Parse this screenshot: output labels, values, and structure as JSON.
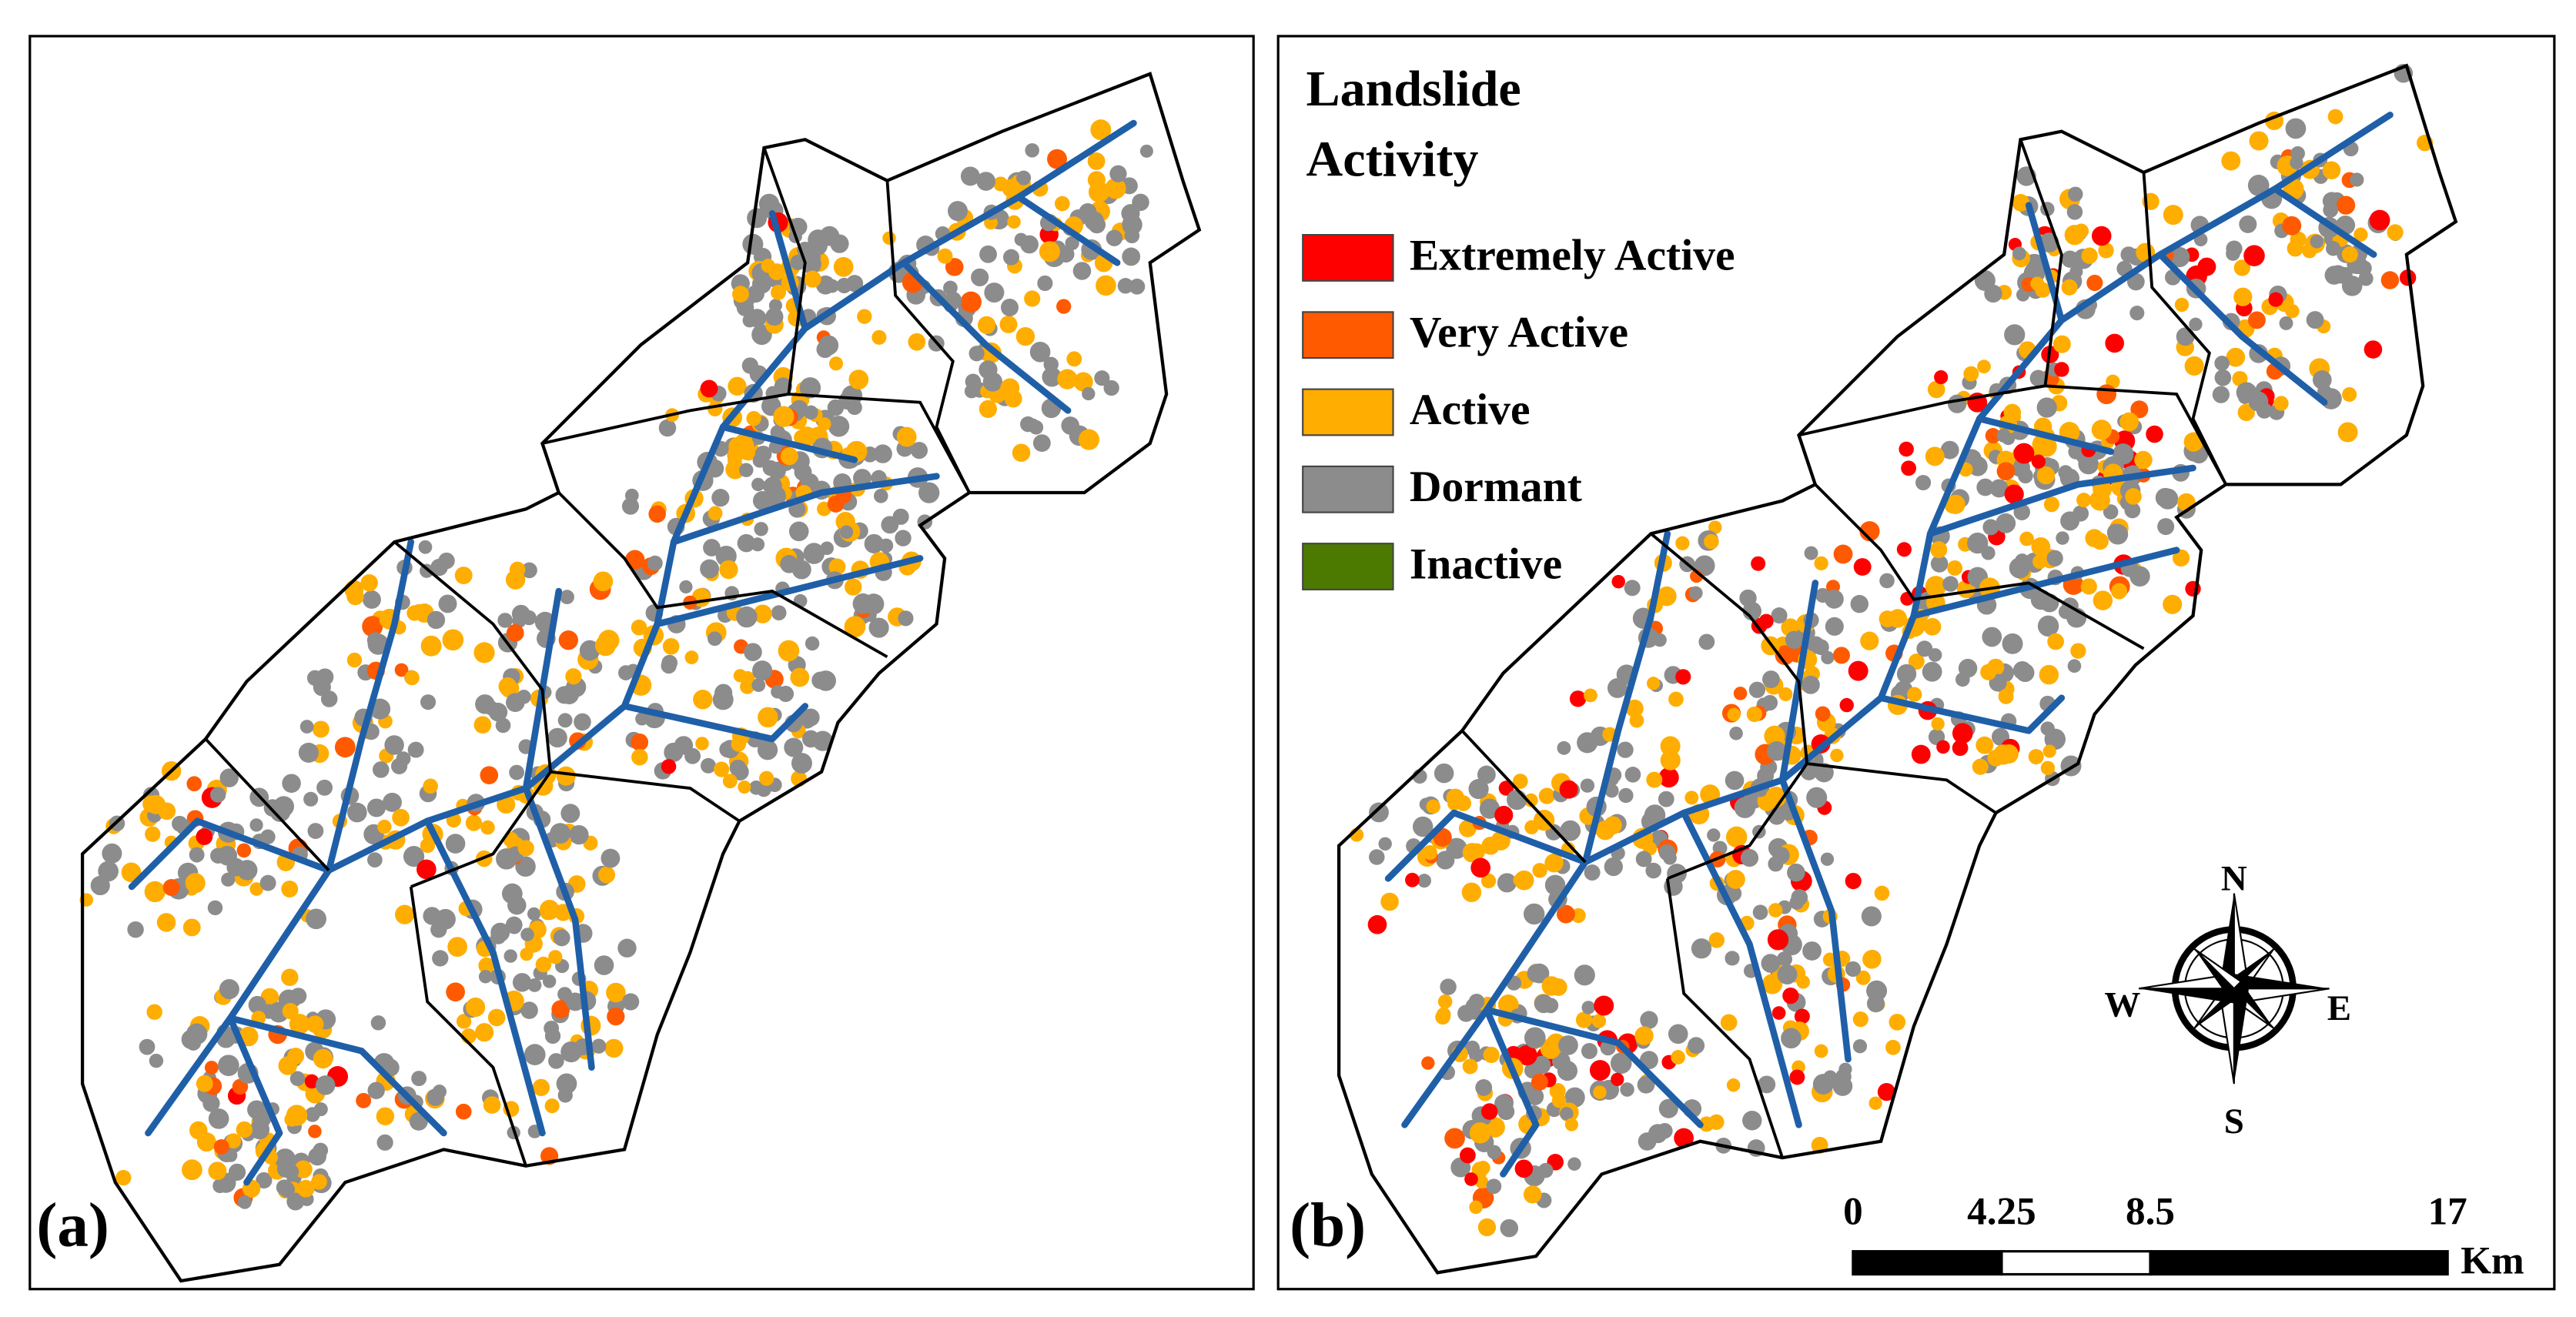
{
  "panels": [
    {
      "label": "(a)"
    },
    {
      "label": "(b)"
    }
  ],
  "legend": {
    "title": [
      "Landslide",
      "Activity"
    ],
    "items": [
      {
        "label": "Extremely Active",
        "color": "#ff0000"
      },
      {
        "label": "Very Active",
        "color": "#ff5a00"
      },
      {
        "label": "Active",
        "color": "#ffad00"
      },
      {
        "label": "Dormant",
        "color": "#8c8c8c"
      },
      {
        "label": "Inactive",
        "color": "#4c7a00"
      }
    ]
  },
  "compass": {
    "n": "N",
    "s": "S",
    "e": "E",
    "w": "W"
  },
  "scale_bar": {
    "ticks": [
      0,
      4.25,
      8.5,
      17
    ],
    "unit": "Km"
  }
}
